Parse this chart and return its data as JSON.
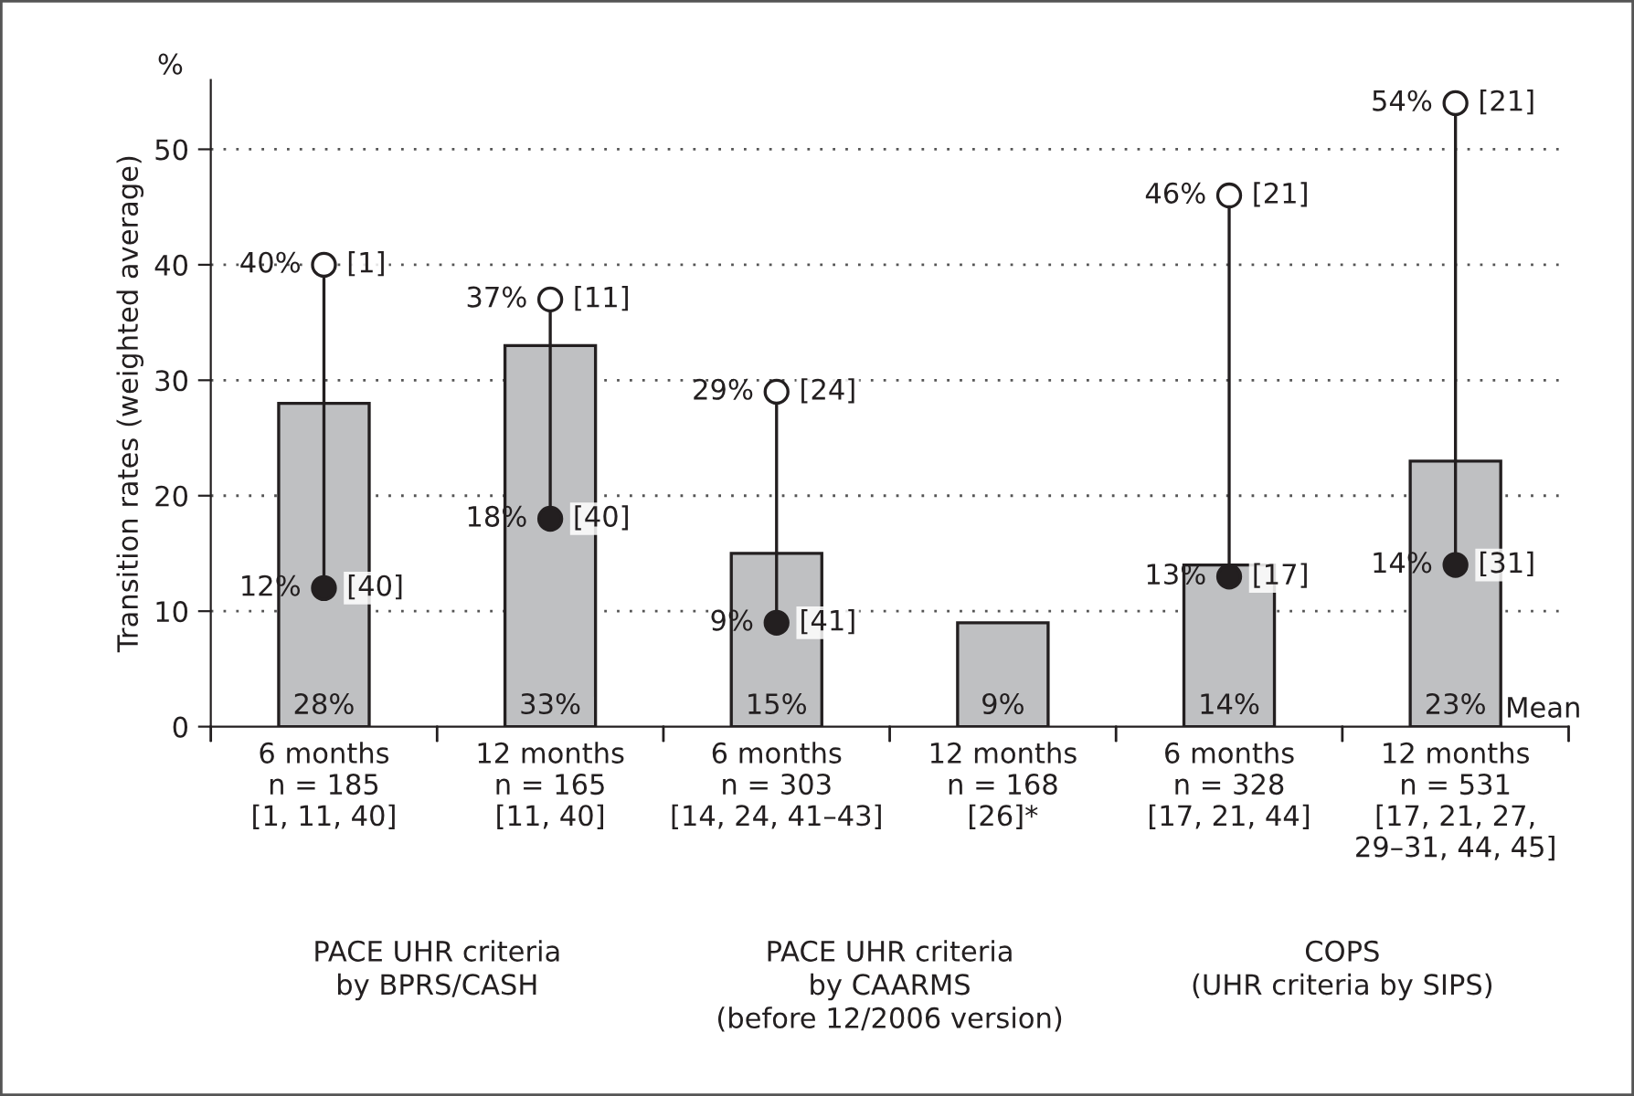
{
  "chart_data": {
    "type": "bar",
    "ylabel": "Transition rates (weighted average)",
    "categories": [
      "6 months\nn = 185\n[1, 11, 40]",
      "12 months\nn = 165\n[11, 40]",
      "6 months\nn = 303\n[14, 24, 41–43]",
      "12 months\nn = 168\n[26]*",
      "6 months\nn = 328\n[17, 21, 44]",
      "12 months\nn = 531\n[17, 21, 27,\n29–31, 44, 45]"
    ],
    "series": [
      {
        "name": "Mean",
        "color": "#bfc0c2",
        "values": [
          28,
          33,
          15,
          9,
          14,
          23
        ],
        "value_labels": [
          "28%",
          "33%",
          "15%",
          "9%",
          "14%",
          "23%"
        ]
      },
      {
        "type": "scatter",
        "color": "#ffffff",
        "values": [
          40,
          37,
          29,
          null,
          46,
          54
        ],
        "value_labels": [
          "40%",
          "37%",
          "29%",
          null,
          "46%",
          "54%"
        ]
      },
      {
        "type": "scatter",
        "color": "#231f20",
        "values": [
          12,
          18,
          9,
          null,
          13,
          14
        ],
        "value_labels": [
          "12%",
          "18%",
          "9%",
          null,
          "13%",
          "14%"
        ]
      }
    ],
    "ylim": [
      0,
      56
    ],
    "yticks": [
      0,
      10,
      20,
      30,
      40,
      50
    ],
    "grid": "y",
    "marker": "circle",
    "annotations": [
      "%",
      "PACE UHR criteria\nby BPRS/CASH",
      "PACE UHR criteria\nby CAARMS\n(before 12/2006 version)",
      "COPS\n(UHR criteria by SIPS)",
      {
        "text": "[1]",
        "x": "6 months\nn = 185\n[1, 11, 40]",
        "y": 40
      },
      {
        "text": "[40]",
        "x": "6 months\nn = 185\n[1, 11, 40]",
        "y": 12
      },
      {
        "text": "[11]",
        "x": "12 months\nn = 165\n[11, 40]",
        "y": 37
      },
      {
        "text": "[40]",
        "x": "12 months\nn = 165\n[11, 40]",
        "y": 18
      },
      {
        "text": "[24]",
        "x": "6 months\nn = 303\n[14, 24, 41–43]",
        "y": 29
      },
      {
        "text": "[41]",
        "x": "6 months\nn = 303\n[14, 24, 41–43]",
        "y": 9
      },
      {
        "text": "[21]",
        "x": "6 months\nn = 328\n[17, 21, 44]",
        "y": 46
      },
      {
        "text": "[17]",
        "x": "6 months\nn = 328\n[17, 21, 44]",
        "y": 13
      },
      {
        "text": "[21]",
        "x": "12 months\nn = 531\n[17, 21, 27,\n29–31, 44, 45]",
        "y": 54
      },
      {
        "text": "[31]",
        "x": "12 months\nn = 531\n[17, 21, 27,\n29–31, 44, 45]",
        "y": 14
      }
    ]
  }
}
